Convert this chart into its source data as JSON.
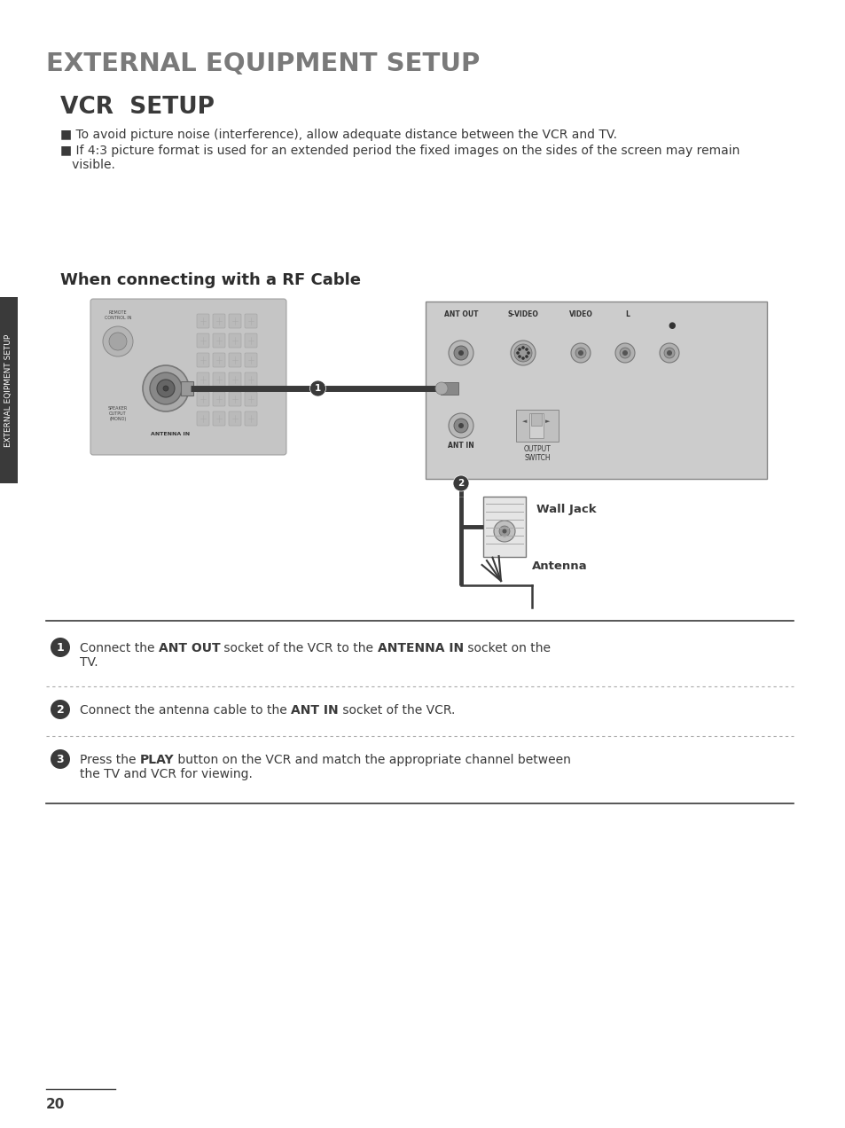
{
  "bg_color": "#ffffff",
  "title": "EXTERNAL EQUIPMENT SETUP",
  "title_color": "#7a7a7a",
  "title_fontsize": 21,
  "subtitle": "VCR  SETUP",
  "subtitle_color": "#3a3a3a",
  "subtitle_fontsize": 19,
  "bullet_color": "#3a3a3a",
  "bullet_fontsize": 10,
  "bullet1": " To avoid picture noise (interference), allow adequate distance between the VCR and TV.",
  "bullet2": " If 4:3 picture format is used for an extended period the fixed images on the sides of the screen may remain\n   visible.",
  "section_title": "When connecting with a RF Cable",
  "section_title_color": "#2c2c2c",
  "section_title_fontsize": 13,
  "sidebar_text": "EXTERNAL EQIPMENT SETUP",
  "sidebar_bg": "#3a3a3a",
  "text_color": "#3a3a3a",
  "body_fontsize": 10,
  "line_color": "#3a3a3a",
  "dashed_color": "#aaaaaa",
  "vcr_bg": "#c5c5c5",
  "tv_bg": "#cccccc",
  "cable_color": "#3a3a3a",
  "label_ant_out": "ANT OUT",
  "label_svideo": "S-VIDEO",
  "label_video": "VIDEO",
  "label_ant_in": "ANT IN",
  "label_output_switch": "OUTPUT\nSWITCH",
  "label_antenna_in": "ANTENNA IN",
  "label_wall_jack": "Wall Jack",
  "label_antenna": "Antenna",
  "step_circle_color": "#3a3a3a",
  "page_number": "20"
}
